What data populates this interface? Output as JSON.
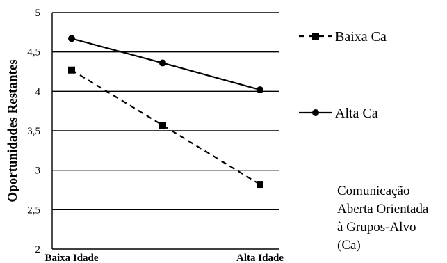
{
  "chart_data": {
    "type": "line",
    "title": "",
    "xlabel": "",
    "ylabel": "Oportunidades Restantes",
    "categories": [
      "Baixa Idade",
      "",
      "Alta Idade"
    ],
    "ylim": [
      2,
      5
    ],
    "yticks": [
      "2",
      "2,5",
      "3",
      "3,5",
      "4",
      "4,5",
      "5"
    ],
    "grid": "horizontal",
    "legend_position": "right",
    "series": [
      {
        "name": "Baixa Ca",
        "values": [
          4.27,
          3.57,
          2.82
        ],
        "style": "dashed",
        "marker": "square",
        "color": "#000000"
      },
      {
        "name": "Alta Ca",
        "values": [
          4.67,
          4.36,
          4.02
        ],
        "style": "solid",
        "marker": "circle",
        "color": "#000000"
      }
    ],
    "annotation": [
      "Comunicação",
      "Aberta Orientada",
      "à Grupos-Alvo",
      "(Ca)"
    ]
  }
}
